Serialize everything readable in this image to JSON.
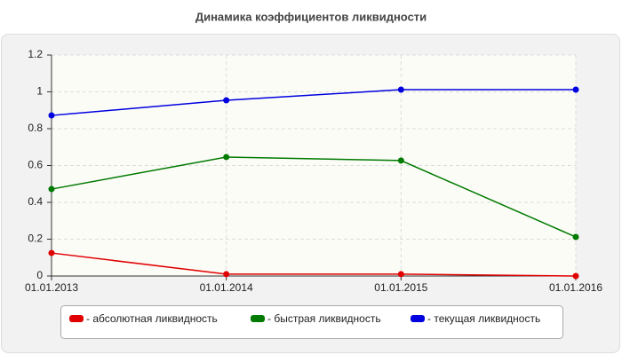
{
  "chart_data": {
    "type": "line",
    "title": "Динамика коэффициентов ликвидности",
    "categories": [
      "01.01.2013",
      "01.01.2014",
      "01.01.2015",
      "01.01.2016"
    ],
    "series": [
      {
        "name": "- абсолютная ликвидность",
        "color": "#e00000",
        "values": [
          0.125,
          0.01,
          0.01,
          0
        ]
      },
      {
        "name": "- быстрая ликвидность",
        "color": "#007a00",
        "values": [
          0.472,
          0.646,
          0.627,
          0.212
        ]
      },
      {
        "name": "- текущая ликвидность",
        "color": "#0000e0",
        "values": [
          0.872,
          0.954,
          1.012,
          1.012
        ]
      }
    ],
    "ylim": [
      0,
      1.2
    ],
    "yticks": [
      0,
      0.2,
      0.4,
      0.6,
      0.8,
      1,
      1.2
    ],
    "grid": true
  }
}
